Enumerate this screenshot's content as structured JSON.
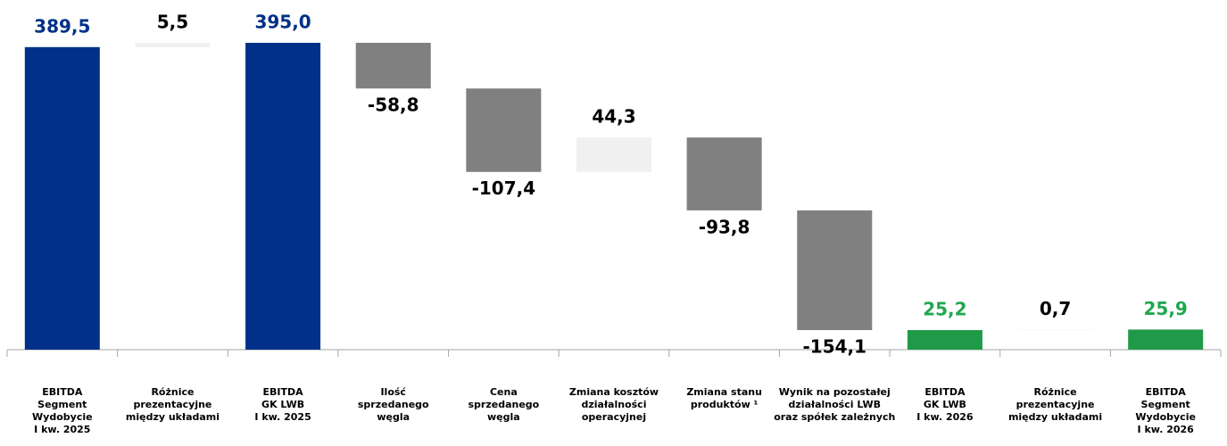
{
  "chart_data": {
    "type": "waterfall",
    "categories": [
      "EBITDA\nSegment\nWydobycie\nI kw. 2025",
      "Różnice\nprezentacyjne\nmiędzy układami",
      "EBITDA\nGK LWB\nI kw. 2025",
      "Ilość\nsprzedanego\nwęgla",
      "Cena\nsprzedanego\nwęgla",
      "Zmiana kosztów\ndziałalności\noperacyjnej",
      "Zmiana stanu\nproduktów ¹",
      "Wynik na pozostałej\ndziałalności LWB\noraz spółek zależnych",
      "EBITDA\nGK LWB\nI kw. 2026",
      "Różnice\nprezentacyjne\nmiędzy układami",
      "EBITDA\nSegment\nWydobycie\nI kw. 2026"
    ],
    "values": [
      389.5,
      5.5,
      395.0,
      -58.8,
      -107.4,
      44.3,
      -93.8,
      -154.1,
      25.2,
      0.7,
      25.9
    ],
    "value_labels": [
      "389,5",
      "5,5",
      "395,0",
      "-58,8",
      "-107,4",
      "44,3",
      "-93,8",
      "-154,1",
      "25,2",
      "0,7",
      "25,9"
    ],
    "measure": [
      "absolute",
      "relative",
      "absolute",
      "relative",
      "relative",
      "relative",
      "relative",
      "relative",
      "absolute",
      "relative",
      "absolute"
    ],
    "colors": [
      "#003087",
      "#f0f0f0",
      "#003087",
      "#808080",
      "#808080",
      "#f0f0f0",
      "#808080",
      "#808080",
      "#1f9a48",
      "#f0f0f0",
      "#1f9a48"
    ],
    "label_colors": [
      "#003087",
      "#000000",
      "#003087",
      "#000000",
      "#000000",
      "#000000",
      "#000000",
      "#000000",
      "#1fa84f",
      "#000000",
      "#1fa84f"
    ]
  }
}
